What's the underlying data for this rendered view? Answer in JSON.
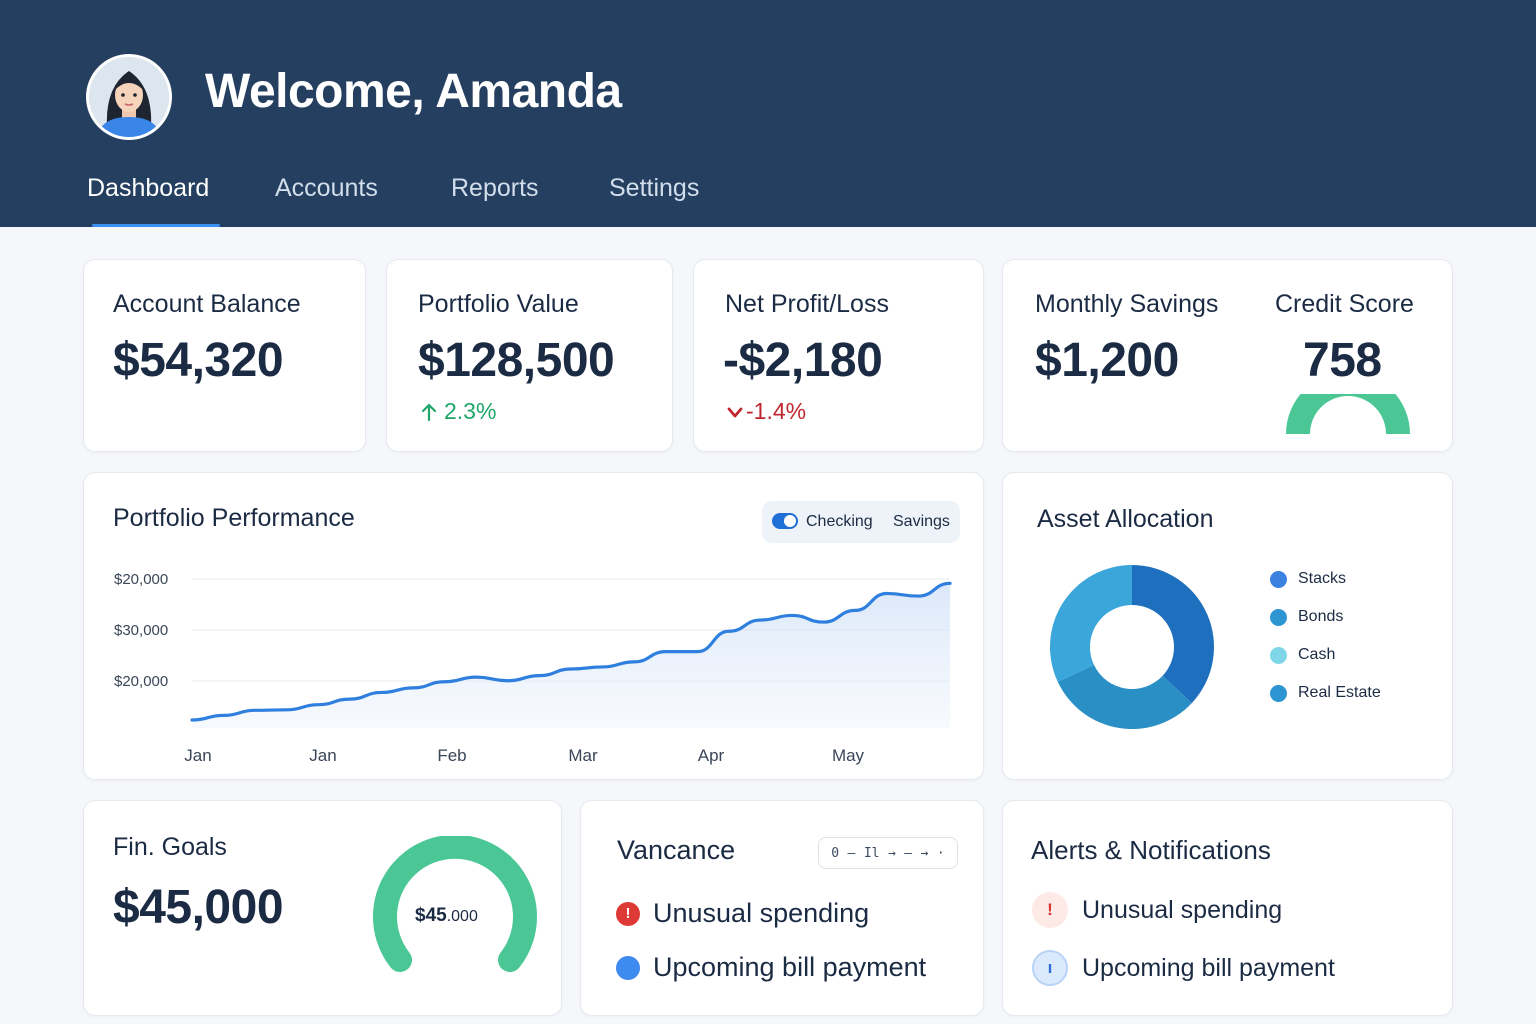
{
  "header": {
    "welcome": "Welcome, Amanda",
    "tabs": [
      {
        "label": "Dashboard",
        "active": true
      },
      {
        "label": "Accounts",
        "active": false
      },
      {
        "label": "Reports",
        "active": false
      },
      {
        "label": "Settings",
        "active": false
      }
    ]
  },
  "kpis": {
    "account_balance": {
      "label": "Account Balance",
      "value": "$54,320"
    },
    "portfolio_value": {
      "label": "Portfolio Value",
      "value": "$128,500",
      "delta": "2.3%",
      "delta_icon": "arrow-up-icon"
    },
    "net_profit": {
      "label": "Net Profit/Loss",
      "value": "-$2,180",
      "delta": "-1.4%",
      "delta_icon": "chevron-down-icon"
    },
    "monthly_savings": {
      "label": "Monthly Savings",
      "value": "$1,200"
    },
    "credit_score": {
      "label": "Credit Score",
      "value": "758"
    }
  },
  "performance": {
    "title": "Portfolio Performance",
    "toggle": {
      "option_a": "Checking",
      "option_b": "Savings",
      "checked": true
    }
  },
  "chart_data": {
    "type": "area",
    "title": "Portfolio Performance",
    "y_tick_labels": [
      "$20,000",
      "$30,000",
      "$20,000"
    ],
    "x_tick_labels": [
      "Jan",
      "Jan",
      "Feb",
      "Mar",
      "Apr",
      "May"
    ],
    "series": [
      {
        "values": [
          0.0,
          0.09,
          0.19,
          0.2,
          0.3,
          0.41,
          0.54,
          0.63,
          0.75,
          0.84,
          0.77,
          0.87,
          1.0,
          1.04,
          1.14,
          1.34,
          1.34,
          1.74,
          1.96,
          2.05,
          1.92,
          2.15,
          2.48,
          2.43,
          2.68
        ]
      }
    ],
    "grid": true,
    "fill": true,
    "color": "#2f7fde"
  },
  "allocation": {
    "title": "Asset Allocation",
    "slices": [
      {
        "label": "Stacks",
        "value": 37,
        "color": "#1f6fbf"
      },
      {
        "label": "Bonds",
        "value": 31,
        "color": "#2a8fc4"
      },
      {
        "label": "Cash",
        "value": 0,
        "color": "#7fd6e8"
      },
      {
        "label": "Real Estate",
        "value": 32,
        "color": "#3aa6da"
      }
    ],
    "legend_colors": [
      "#3b82e0",
      "#2e95d3",
      "#7fd6e8",
      "#2e95d3"
    ]
  },
  "goals": {
    "title": "Fin. Goals",
    "value": "$45,000",
    "gauge_main": "$45",
    "gauge_sub": ".000",
    "gauge_fill": 1.0,
    "gauge_color": "#4ac795"
  },
  "vancance": {
    "title": "Vancance",
    "controls": [
      "0",
      "–",
      "Il",
      "→",
      "–",
      "→",
      "·"
    ],
    "items": [
      {
        "label": "Unusual spending",
        "icon": "alert-circle-icon",
        "color": "#de3a35",
        "glyph": "!"
      },
      {
        "label": "Upcoming bill payment",
        "icon": "blue-dot-icon",
        "color": "#3d8af0",
        "glyph": ""
      }
    ]
  },
  "alerts": {
    "title": "Alerts & Notifications",
    "items": [
      {
        "label": "Unusual spending",
        "icon": "warning-icon",
        "bg": "#fde9e6",
        "fg": "#d8362f",
        "glyph": "!"
      },
      {
        "label": "Upcoming bill payment",
        "icon": "info-icon",
        "bg": "#dbe9fc",
        "fg": "#2e6fd6",
        "glyph": "ı"
      }
    ]
  },
  "colors": {
    "header_bg": "#243f60",
    "positive": "#1fa66a",
    "negative": "#c0262d",
    "credit_arc": "#4ac795"
  }
}
